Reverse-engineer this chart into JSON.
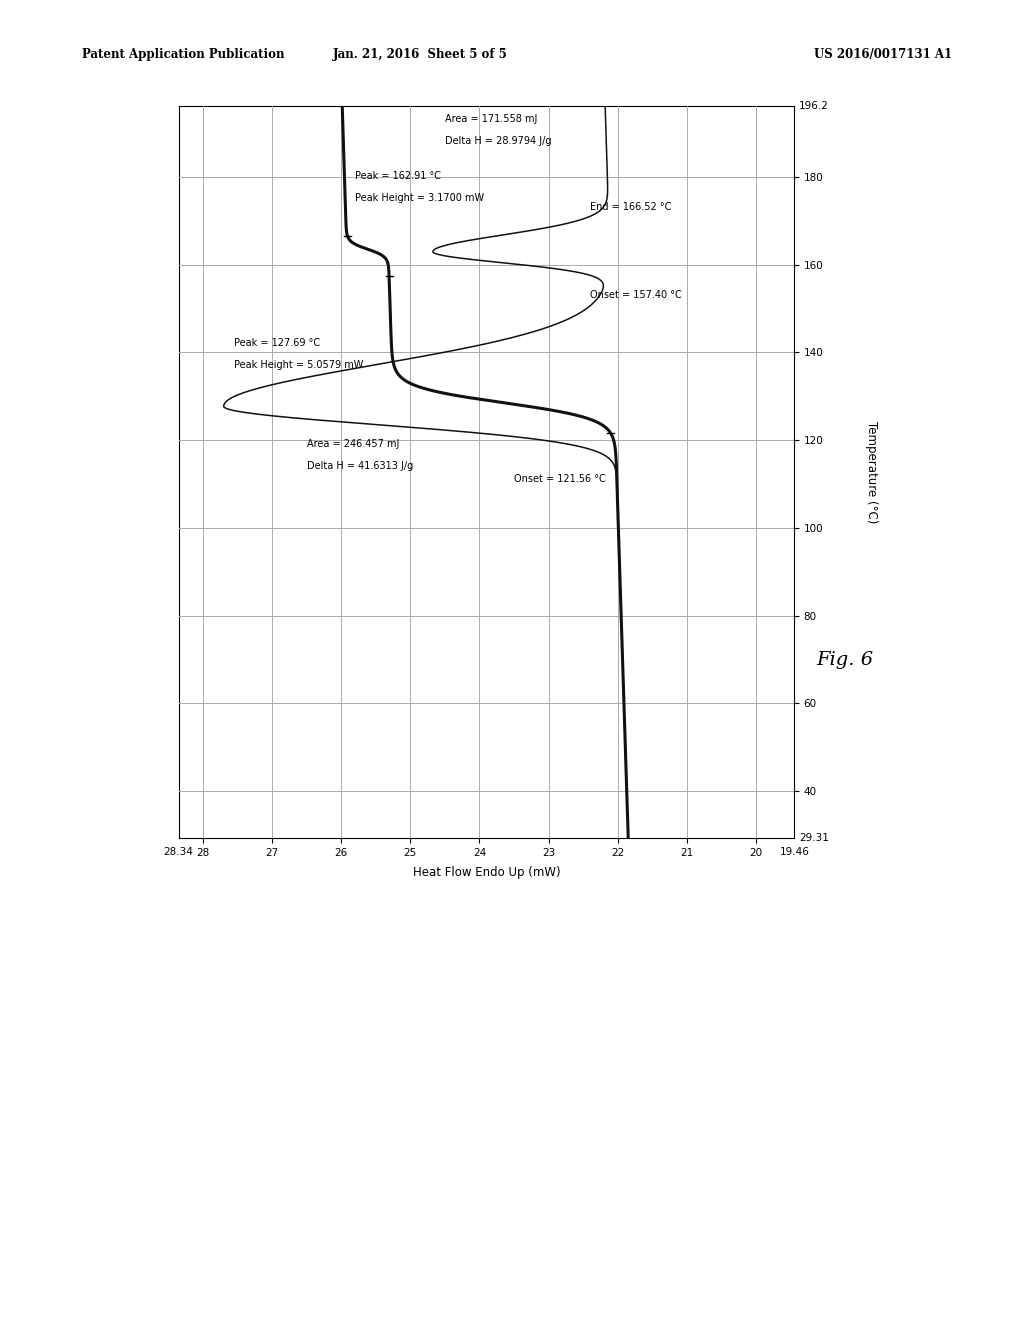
{
  "header_left": "Patent Application Publication",
  "header_center": "Jan. 21, 2016  Sheet 5 of 5",
  "header_right": "US 2016/0017131 A1",
  "fig_label": "Fig. 6",
  "temp_label": "Temperature (°C)",
  "heatflow_label": "Heat Flow Endo Up (mW)",
  "temp_min": 29.31,
  "temp_max": 196.2,
  "hf_min": 19.46,
  "hf_max": 28.34,
  "temp_ticks": [
    40,
    60,
    80,
    100,
    120,
    140,
    160,
    180
  ],
  "temp_tick_extra_top": "196.2",
  "temp_tick_extra_bot": "29.31",
  "hf_ticks": [
    20,
    21,
    22,
    23,
    24,
    25,
    26,
    27,
    28
  ],
  "hf_tick_extra_left": "28.34",
  "hf_tick_extra_right": "19.46",
  "background_color": "#ffffff",
  "line_color": "#111111",
  "grid_color": "#aaaaaa",
  "font_size_header": 8.5,
  "font_size_tick": 7.5,
  "font_size_ann": 7.0,
  "font_size_axlabel": 8.5,
  "font_size_fig": 14,
  "ann1_peak_temp": "Peak = 127.69 °C",
  "ann1_peak_ht": "Peak Height = 5.0579 mW",
  "ann1_area": "Area = 246.457 mJ",
  "ann1_deltah": "Delta H = 41.6313 J/g",
  "ann1_onset": "Onset = 121.56 °C",
  "ann2_peak_temp": "Peak = 162.91 °C",
  "ann2_peak_ht": "Peak Height = 3.1700 mW",
  "ann2_area": "Area = 171.558 mJ",
  "ann2_deltah": "Delta H = 28.9794 J/g",
  "ann2_onset": "Onset = 157.40 °C",
  "ann2_end": "End = 166.52 °C"
}
